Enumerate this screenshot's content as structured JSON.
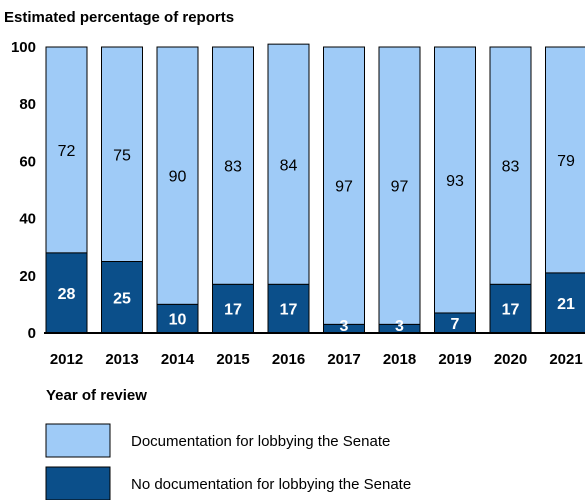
{
  "chart_data": {
    "type": "bar",
    "stacked": true,
    "title": "Estimated percentage of reports",
    "xlabel": "Year of review",
    "ylabel": "",
    "ylim": [
      0,
      100
    ],
    "yticks": [
      0,
      20,
      40,
      60,
      80,
      100
    ],
    "categories": [
      "2012",
      "2013",
      "2014",
      "2015",
      "2016",
      "2017",
      "2018",
      "2019",
      "2020",
      "2021"
    ],
    "series": [
      {
        "name": "No documentation for lobbying the Senate",
        "color": "#0b4f8a",
        "values": [
          28,
          25,
          10,
          17,
          17,
          3,
          3,
          7,
          17,
          21
        ]
      },
      {
        "name": "Documentation for lobbying the Senate",
        "color": "#9fcbf7",
        "values": [
          72,
          75,
          90,
          83,
          84,
          97,
          97,
          93,
          83,
          79
        ]
      }
    ],
    "grid": false,
    "legend_position": "bottom"
  }
}
